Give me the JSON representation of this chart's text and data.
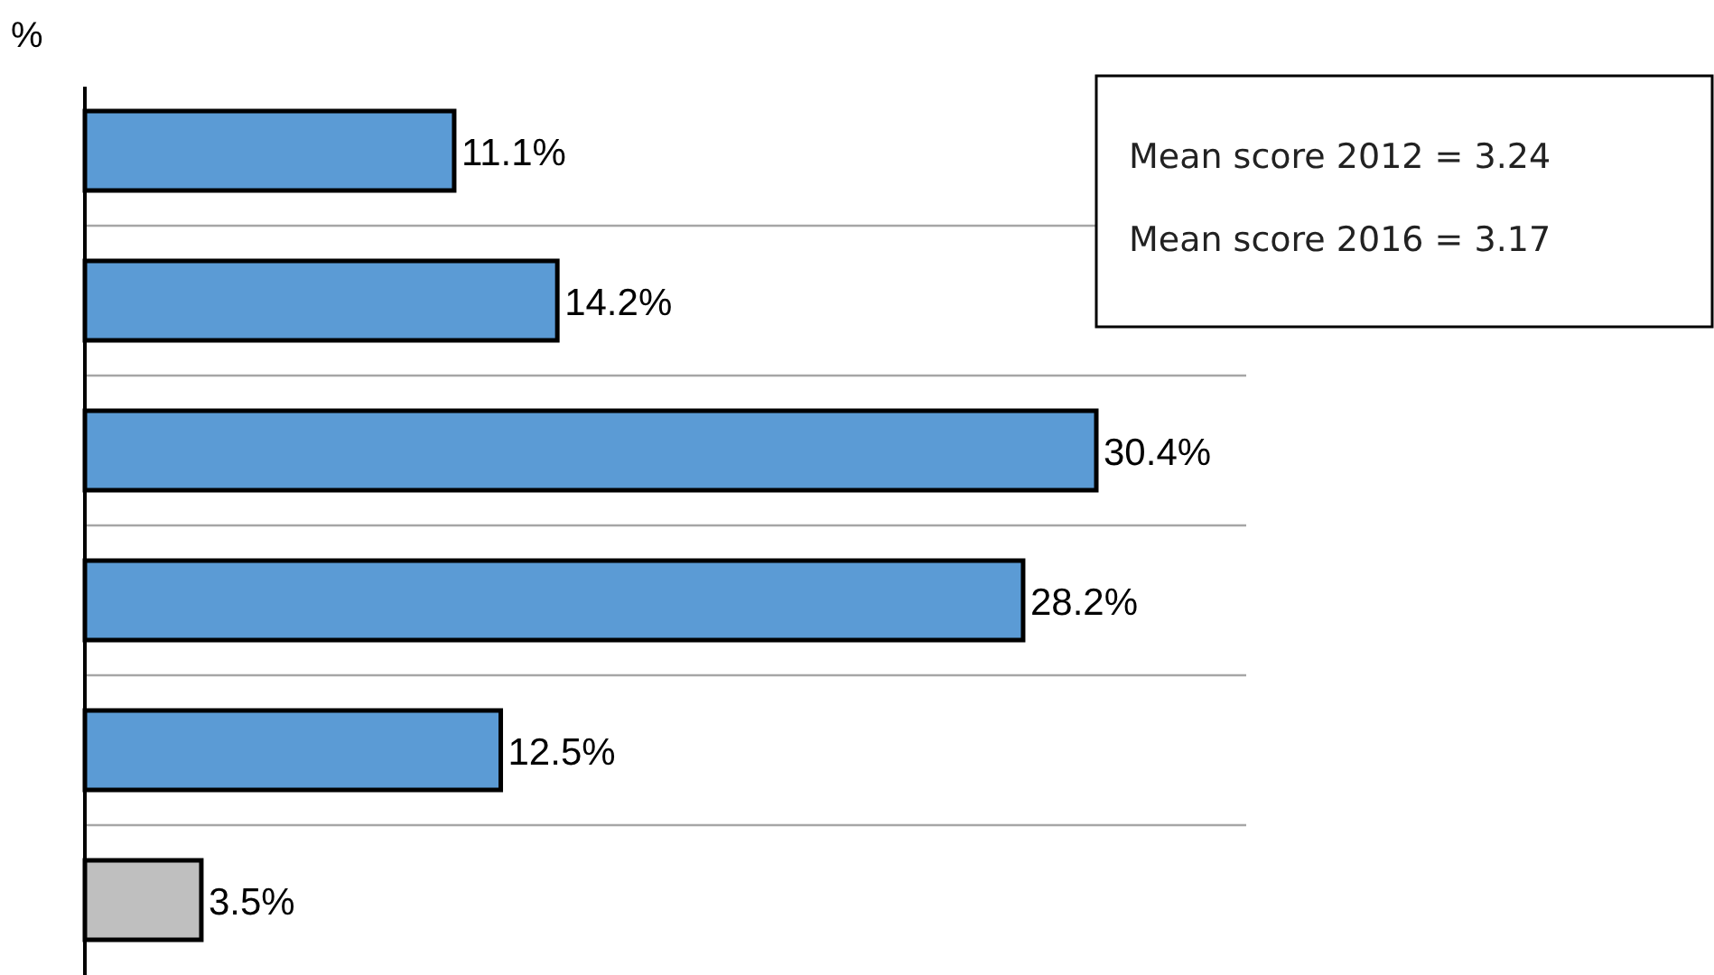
{
  "chart_data": {
    "type": "bar",
    "orientation": "horizontal",
    "title": "%",
    "categories": [
      null,
      null,
      null,
      null,
      null,
      null
    ],
    "values": [
      11.1,
      14.2,
      30.4,
      28.2,
      12.5,
      3.5
    ],
    "value_labels": [
      "11.1%",
      "14.2%",
      "30.4%",
      "28.2%",
      "12.5%",
      "3.5%"
    ],
    "colors": [
      "#5b9bd5",
      "#5b9bd5",
      "#5b9bd5",
      "#5b9bd5",
      "#5b9bd5",
      "#bfbfbf"
    ],
    "grid": "y",
    "annotations": [
      "Mean score 2012 = 3.24",
      "Mean score 2016 = 3.17"
    ]
  }
}
